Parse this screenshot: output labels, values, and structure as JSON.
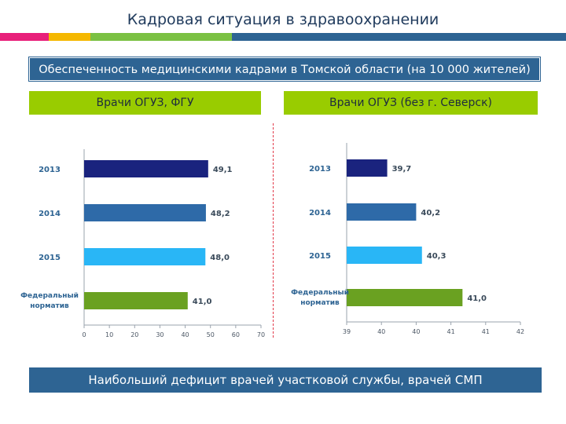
{
  "title": "Кадровая ситуация в здравоохранении",
  "banner": "Обеспеченность медицинскими кадрами в Томской области (на 10 000 жителей)",
  "colors": {
    "stripe": [
      "#e8207a",
      "#f5b800",
      "#7bc143",
      "#2e6493"
    ],
    "bars": [
      "#1a237e",
      "#2e6aa8",
      "#29b6f6",
      "#6aa121"
    ],
    "header_bg": "#2e6493",
    "green_bg": "#99cc00"
  },
  "footer": "Наибольший дефицит врачей участковой службы, врачей СМП",
  "chart_data": [
    {
      "type": "bar",
      "orientation": "horizontal",
      "title": "Врачи ОГУЗ, ФГУ",
      "categories": [
        "2013",
        "2014",
        "2015",
        "Федеральный норматив"
      ],
      "category_lines": [
        [
          "2013"
        ],
        [
          "2014"
        ],
        [
          "2015"
        ],
        [
          "Федеральный",
          "норматив"
        ]
      ],
      "values": [
        49.1,
        48.2,
        48.0,
        41.0
      ],
      "value_labels": [
        "49,1",
        "48,2",
        "48,0",
        "41,0"
      ],
      "xlim": [
        0,
        70
      ],
      "ticks": [
        "0",
        "10",
        "20",
        "30",
        "40",
        "50",
        "60",
        "70"
      ],
      "grid": false
    },
    {
      "type": "bar",
      "orientation": "horizontal",
      "title": "Врачи ОГУЗ (без г. Северск)",
      "categories": [
        "2013",
        "2014",
        "2015",
        "Федеральный норматив"
      ],
      "category_lines": [
        [
          "2013"
        ],
        [
          "2014"
        ],
        [
          "2015"
        ],
        [
          "Федеральный",
          "норматив"
        ]
      ],
      "values": [
        39.7,
        40.2,
        40.3,
        41.0
      ],
      "value_labels": [
        "39,7",
        "40,2",
        "40,3",
        "41,0"
      ],
      "xlim": [
        39,
        42
      ],
      "ticks": [
        "39",
        "40",
        "40",
        "41",
        "41",
        "42"
      ],
      "grid": false
    }
  ]
}
